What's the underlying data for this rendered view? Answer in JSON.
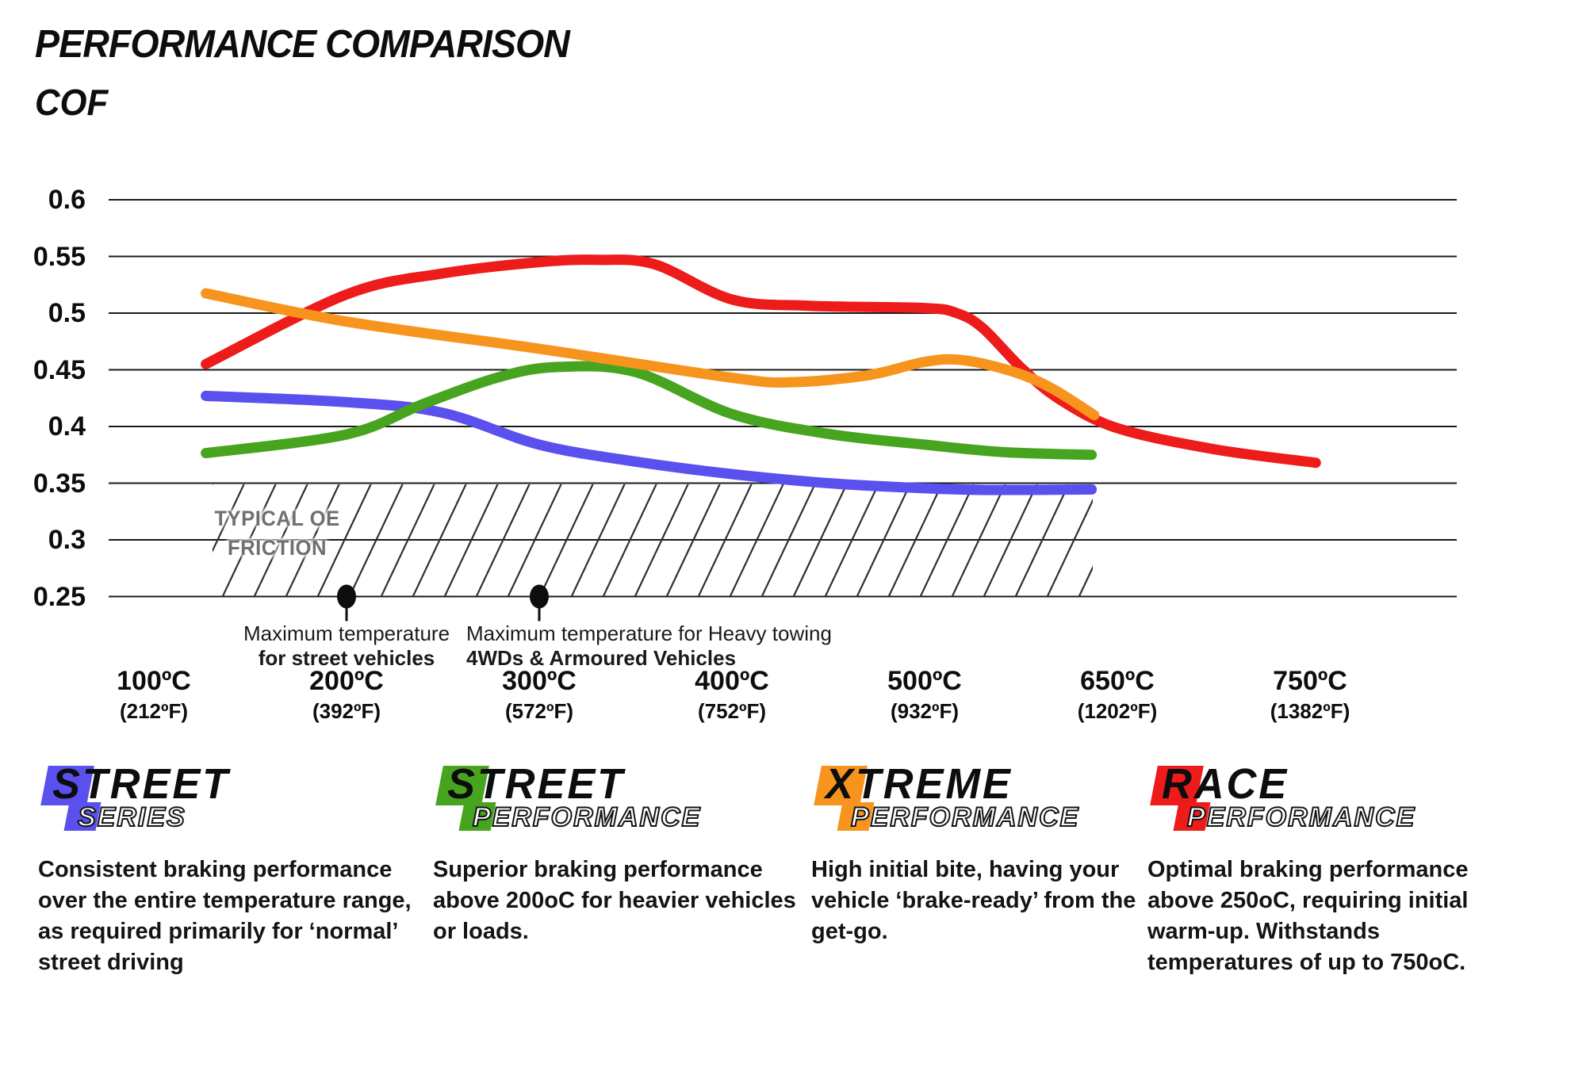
{
  "header": {
    "title": "PERFORMANCE COMPARISON",
    "y_axis_title": "COF"
  },
  "palette": {
    "street_series_blue": "#5a50ee",
    "street_performance_green": "#47a41e",
    "xtreme_performance_orange": "#f7941e",
    "race_performance_red": "#ee1b1b",
    "gridline": "#1a1a1a",
    "hatch_line": "#2f2f2f",
    "hatch_label_gray": "#6f6f6f",
    "annotation_dot": "#0d0d0d"
  },
  "chart_data": {
    "type": "line",
    "title": "PERFORMANCE COMPARISON",
    "ylabel": "COF",
    "xlabel": "",
    "ylim": [
      0.25,
      0.6
    ],
    "grid": "horizontal-only",
    "legend_position": "bottom",
    "y_ticks": [
      "0.6",
      "0.55",
      "0.5",
      "0.45",
      "0.4",
      "0.35",
      "0.3",
      "0.25"
    ],
    "y_tick_values": [
      0.6,
      0.55,
      0.5,
      0.45,
      0.4,
      0.35,
      0.3,
      0.25
    ],
    "x_ticks": [
      {
        "celsius": "100ºC",
        "fahrenheit": "(212ºF)",
        "value_c": 100
      },
      {
        "celsius": "200ºC",
        "fahrenheit": "(392ºF)",
        "value_c": 200
      },
      {
        "celsius": "300ºC",
        "fahrenheit": "(572ºF)",
        "value_c": 300
      },
      {
        "celsius": "400ºC",
        "fahrenheit": "(752ºF)",
        "value_c": 400
      },
      {
        "celsius": "500ºC",
        "fahrenheit": "(932ºF)",
        "value_c": 500
      },
      {
        "celsius": "650ºC",
        "fahrenheit": "(1202ºF)",
        "value_c": 650
      },
      {
        "celsius": "750ºC",
        "fahrenheit": "(1382ºF)",
        "value_c": 750
      }
    ],
    "series": [
      {
        "name": "Street Series",
        "color": "#5a50ee",
        "points": [
          [
            127,
            0.427
          ],
          [
            200,
            0.4215
          ],
          [
            250,
            0.412
          ],
          [
            300,
            0.384
          ],
          [
            350,
            0.369
          ],
          [
            400,
            0.358
          ],
          [
            450,
            0.35
          ],
          [
            500,
            0.3455
          ],
          [
            550,
            0.344
          ],
          [
            630,
            0.3445
          ]
        ]
      },
      {
        "name": "Street Performance",
        "color": "#47a41e",
        "points": [
          [
            127,
            0.3765
          ],
          [
            200,
            0.393
          ],
          [
            240,
            0.42
          ],
          [
            280,
            0.444
          ],
          [
            310,
            0.4525
          ],
          [
            350,
            0.448
          ],
          [
            400,
            0.411
          ],
          [
            450,
            0.3935
          ],
          [
            500,
            0.384
          ],
          [
            560,
            0.3775
          ],
          [
            630,
            0.375
          ]
        ]
      },
      {
        "name": "Race Performance",
        "color": "#ee1b1b",
        "points": [
          [
            127,
            0.455
          ],
          [
            200,
            0.5165
          ],
          [
            250,
            0.535
          ],
          [
            300,
            0.545
          ],
          [
            330,
            0.547
          ],
          [
            360,
            0.543
          ],
          [
            400,
            0.512
          ],
          [
            440,
            0.5065
          ],
          [
            500,
            0.5045
          ],
          [
            525,
            0.5
          ],
          [
            545,
            0.487
          ],
          [
            575,
            0.452
          ],
          [
            605,
            0.424
          ],
          [
            650,
            0.3985
          ],
          [
            700,
            0.38
          ],
          [
            753,
            0.368
          ]
        ]
      },
      {
        "name": "Xtreme Performance",
        "color": "#f7941e",
        "points": [
          [
            127,
            0.5175
          ],
          [
            200,
            0.4925
          ],
          [
            300,
            0.4685
          ],
          [
            400,
            0.443
          ],
          [
            430,
            0.439
          ],
          [
            470,
            0.445
          ],
          [
            500,
            0.457
          ],
          [
            530,
            0.4585
          ],
          [
            570,
            0.448
          ],
          [
            600,
            0.433
          ],
          [
            632,
            0.41
          ]
        ]
      }
    ],
    "oe_band": {
      "label_line1": "TYPICAL OE",
      "label_line2": "FRICTION",
      "cof_range": [
        0.25,
        0.35
      ],
      "temp_range_c": [
        130,
        630
      ]
    },
    "annotations": [
      {
        "temp_c": 200,
        "cof": 0.25,
        "line1": "Maximum temperature",
        "line2": "for street vehicles",
        "align": "center"
      },
      {
        "temp_c": 300,
        "cof": 0.25,
        "line1": "Maximum temperature for Heavy towing",
        "line2": "4WDs & Armoured Vehicles",
        "align": "left"
      }
    ]
  },
  "legend": [
    {
      "word1": "STREET",
      "word2": "SERIES",
      "color": "#5a50ee",
      "description": "Consistent braking performance over the entire temperature range, as required primarily for ‘normal’ street driving"
    },
    {
      "word1": "STREET",
      "word2": "PERFORMANCE",
      "color": "#47a41e",
      "description": "Superior braking performance above 200oC for heavier vehicles or loads."
    },
    {
      "word1": "XTREME",
      "word2": "PERFORMANCE",
      "color": "#f7941e",
      "description": "High initial bite, having your vehicle ‘brake-ready’ from the get-go."
    },
    {
      "word1": "RACE",
      "word2": "PERFORMANCE",
      "color": "#ee1b1b",
      "description": "Optimal braking performance above 250oC, requiring initial warm-up. Withstands temperatures of up to 750oC."
    }
  ]
}
